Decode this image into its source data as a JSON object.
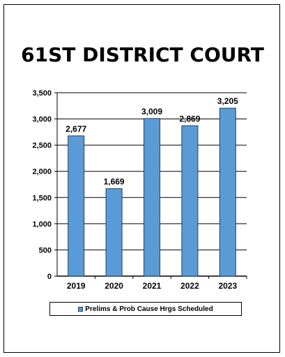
{
  "chart_data": {
    "type": "bar",
    "title": "61ST DISTRICT COURT",
    "categories": [
      "2019",
      "2020",
      "2021",
      "2022",
      "2023"
    ],
    "series": [
      {
        "name": "Prelims & Prob Cause Hrgs Scheduled",
        "values": [
          2677,
          1669,
          3009,
          2869,
          3205
        ]
      }
    ],
    "value_labels": [
      "2,677",
      "1,669",
      "3,009",
      "2,869",
      "3,205"
    ],
    "y_ticks": [
      "0",
      "500",
      "1,000",
      "1,500",
      "2,000",
      "2,500",
      "3,000",
      "3,500"
    ],
    "ylim": [
      0,
      3500
    ],
    "grid": true,
    "legend_position": "bottom",
    "bar_color": "#5b9bd5"
  }
}
